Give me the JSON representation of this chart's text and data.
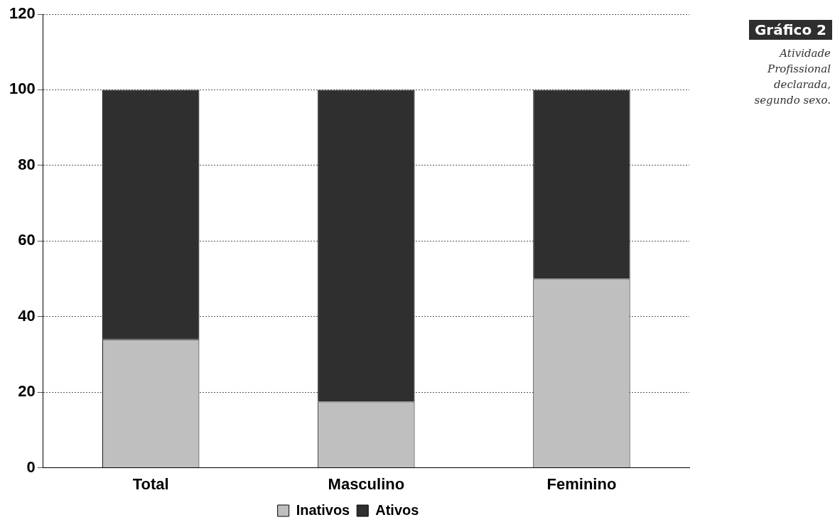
{
  "chart_data": {
    "type": "bar",
    "title": "Gráfico 2",
    "subtitle": "Atividade Profissional declarada, segundo sexo.",
    "categories": [
      "Total",
      "Masculino",
      "Feminino"
    ],
    "series": [
      {
        "name": "Inativos",
        "color": "#bfbfbf",
        "values": [
          34,
          17.5,
          50
        ]
      },
      {
        "name": "Ativos",
        "color": "#2f2f2f",
        "values": [
          66,
          82.5,
          50
        ]
      }
    ],
    "stacked": true,
    "ylim": [
      0,
      120
    ],
    "yticks": [
      0,
      20,
      40,
      60,
      80,
      100,
      120
    ],
    "grid": "y",
    "legend": "bottom"
  }
}
